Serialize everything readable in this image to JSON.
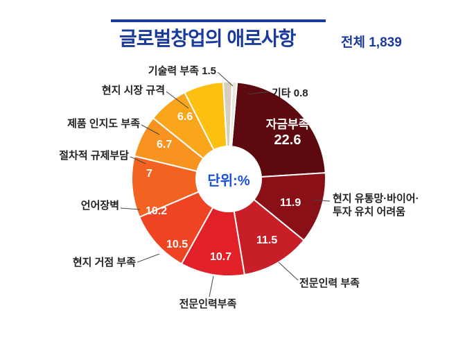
{
  "header": {
    "title_prefix": "글로벌창업의 ",
    "title_highlight": "애로사항",
    "subtitle": "전체 1,839",
    "bar_color": "#1a3a9e",
    "title_color": "#1a3a9e",
    "title_fontsize": 28,
    "subtitle_fontsize": 19
  },
  "chart": {
    "type": "pie",
    "unit_label": "단위:%",
    "center_color": "#1a4fd6",
    "center_fontsize": 20,
    "background_color": "#ffffff",
    "inner_radius": 48,
    "outer_radius": 140,
    "start_angle_deg": 5,
    "label_text_color": "#222222",
    "slice_label_text_color": "#ffffff",
    "slices": [
      {
        "name": "자금부족",
        "value": 22.6,
        "color": "#5c0a0f",
        "show_inner_name": true
      },
      {
        "name": "현지 유통망·바이어·투자 유치 어려움",
        "value": 11.9,
        "color": "#8a1018"
      },
      {
        "name": "전문인력 부족",
        "value": 11.5,
        "color": "#c81e28"
      },
      {
        "name": "전문인력부족",
        "value": 10.7,
        "color": "#e12028"
      },
      {
        "name": "현지 거점 부족",
        "value": 10.5,
        "color": "#ef4424"
      },
      {
        "name": "언어장벽",
        "value": 10.2,
        "color": "#f26322"
      },
      {
        "name": "절차적 규제부담",
        "value": 7.0,
        "color": "#f7931e"
      },
      {
        "name": "제품 인지도 부족",
        "value": 6.7,
        "color": "#f9a61a"
      },
      {
        "name": "현지 시장 규격",
        "value": 6.6,
        "color": "#fdc010"
      },
      {
        "name": "기술력 부족",
        "value": 1.5,
        "color": "#d6cfbf",
        "value_on_outer": true
      },
      {
        "name": "기타",
        "value": 0.8,
        "color": "#ece7dc",
        "value_on_outer": true
      }
    ]
  }
}
